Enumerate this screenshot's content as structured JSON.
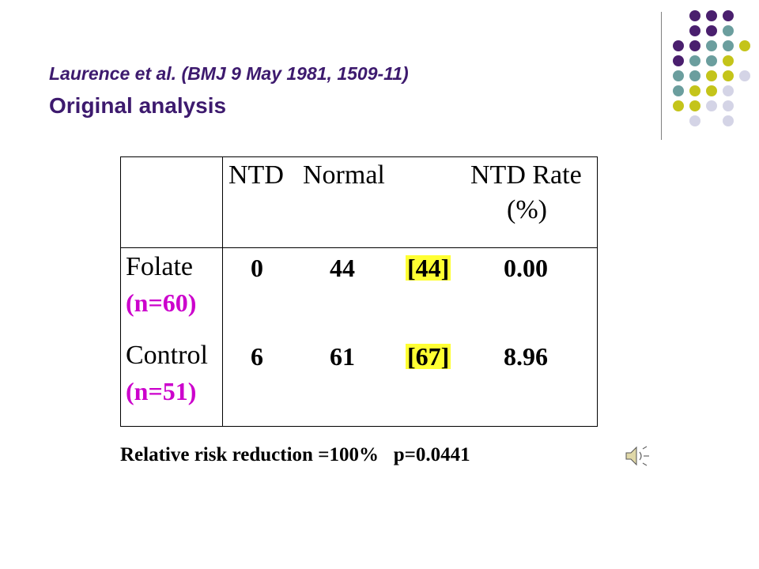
{
  "header": {
    "citation": "Laurence et al. (BMJ 9 May 1981, 1509-11)",
    "subtitle": "Original analysis"
  },
  "table": {
    "columns": {
      "ntd": "NTD",
      "normal": "Normal",
      "rate_line1": "NTD Rate",
      "rate_line2": "(%)"
    },
    "rows": [
      {
        "group": "Folate",
        "n": "(n=60)",
        "ntd": "0",
        "normal": "44",
        "total": "[44]",
        "rate": "0.00"
      },
      {
        "group": "Control",
        "n": "(n=51)",
        "ntd": "6",
        "normal": "61",
        "total": "[67]",
        "rate": "8.96"
      }
    ]
  },
  "footer": {
    "rrr": "Relative risk reduction =100%",
    "p_value": "p=0.0441"
  },
  "colors": {
    "title": "#3d1a6e",
    "n_label": "#cc00cc",
    "highlight": "#ffff33",
    "dot_purple": "#4a1f6e",
    "dot_teal": "#6b9e9e",
    "dot_olive": "#c4c41a",
    "dot_lavender": "#d4d4e6"
  },
  "icons": {
    "audio": "speaker-icon"
  }
}
